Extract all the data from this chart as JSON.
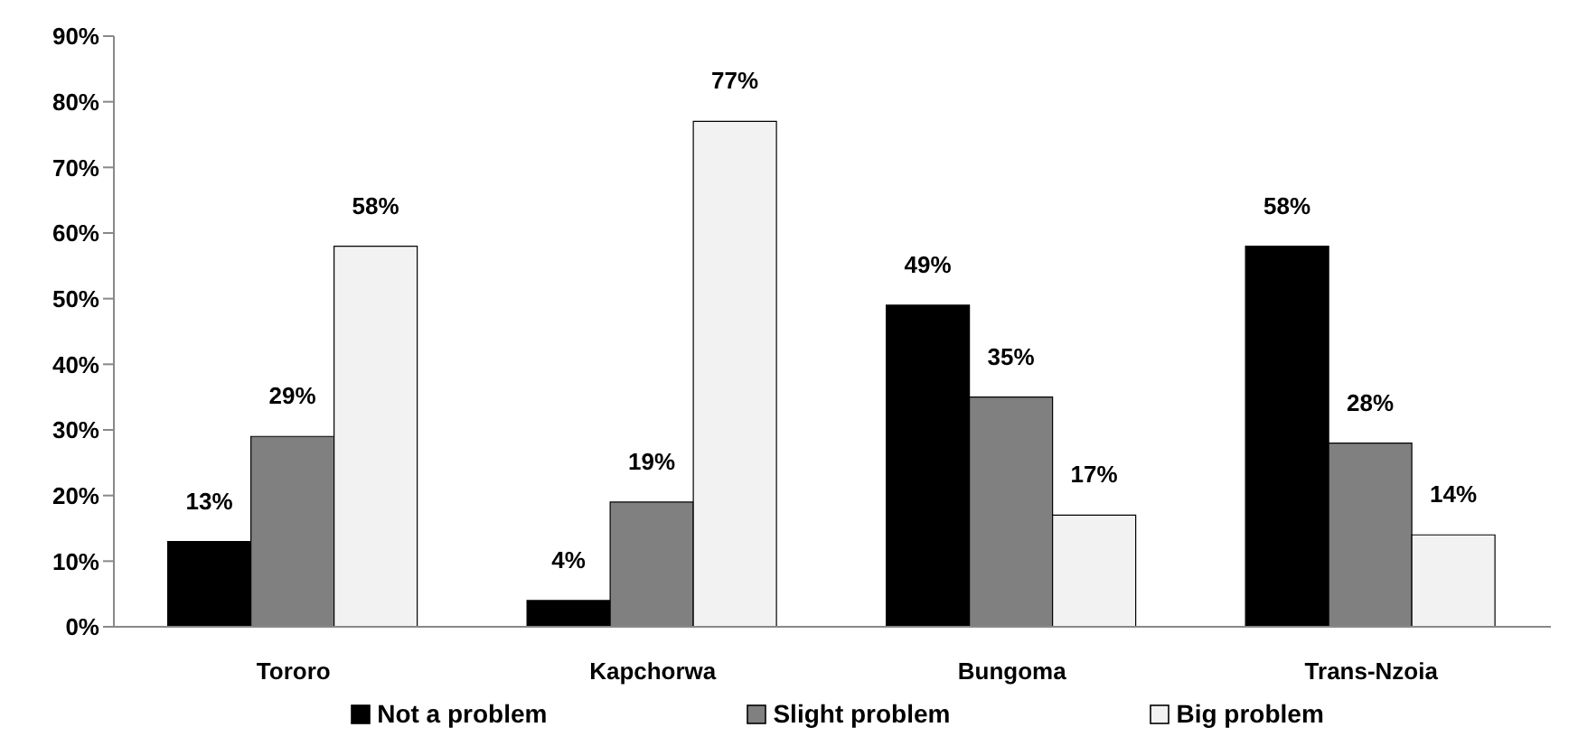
{
  "chart_data": {
    "type": "bar",
    "categories": [
      "Tororo",
      "Kapchorwa",
      "Bungoma",
      "Trans-Nzoia"
    ],
    "series": [
      {
        "name": "Not a problem",
        "color": "#000000",
        "values": [
          13,
          4,
          49,
          58
        ],
        "value_labels": [
          "13%",
          "4%",
          "49%",
          "58%"
        ]
      },
      {
        "name": "Slight problem",
        "color": "#808080",
        "values": [
          29,
          19,
          35,
          28
        ],
        "value_labels": [
          "29%",
          "19%",
          "35%",
          "28%"
        ]
      },
      {
        "name": "Big problem",
        "color": "#f2f2f2",
        "values": [
          58,
          77,
          17,
          14
        ],
        "value_labels": [
          "58%",
          "77%",
          "17%",
          "14%"
        ]
      }
    ],
    "ylim": [
      0,
      90
    ],
    "yticks": [
      {
        "value": 0,
        "label": "0%"
      },
      {
        "value": 10,
        "label": "10%"
      },
      {
        "value": 20,
        "label": "20%"
      },
      {
        "value": 30,
        "label": "30%"
      },
      {
        "value": 40,
        "label": "40%"
      },
      {
        "value": 50,
        "label": "50%"
      },
      {
        "value": 60,
        "label": "60%"
      },
      {
        "value": 70,
        "label": "70%"
      },
      {
        "value": 80,
        "label": "80%"
      },
      {
        "value": 90,
        "label": "90%"
      }
    ],
    "grid": false,
    "legend": "bottom"
  }
}
